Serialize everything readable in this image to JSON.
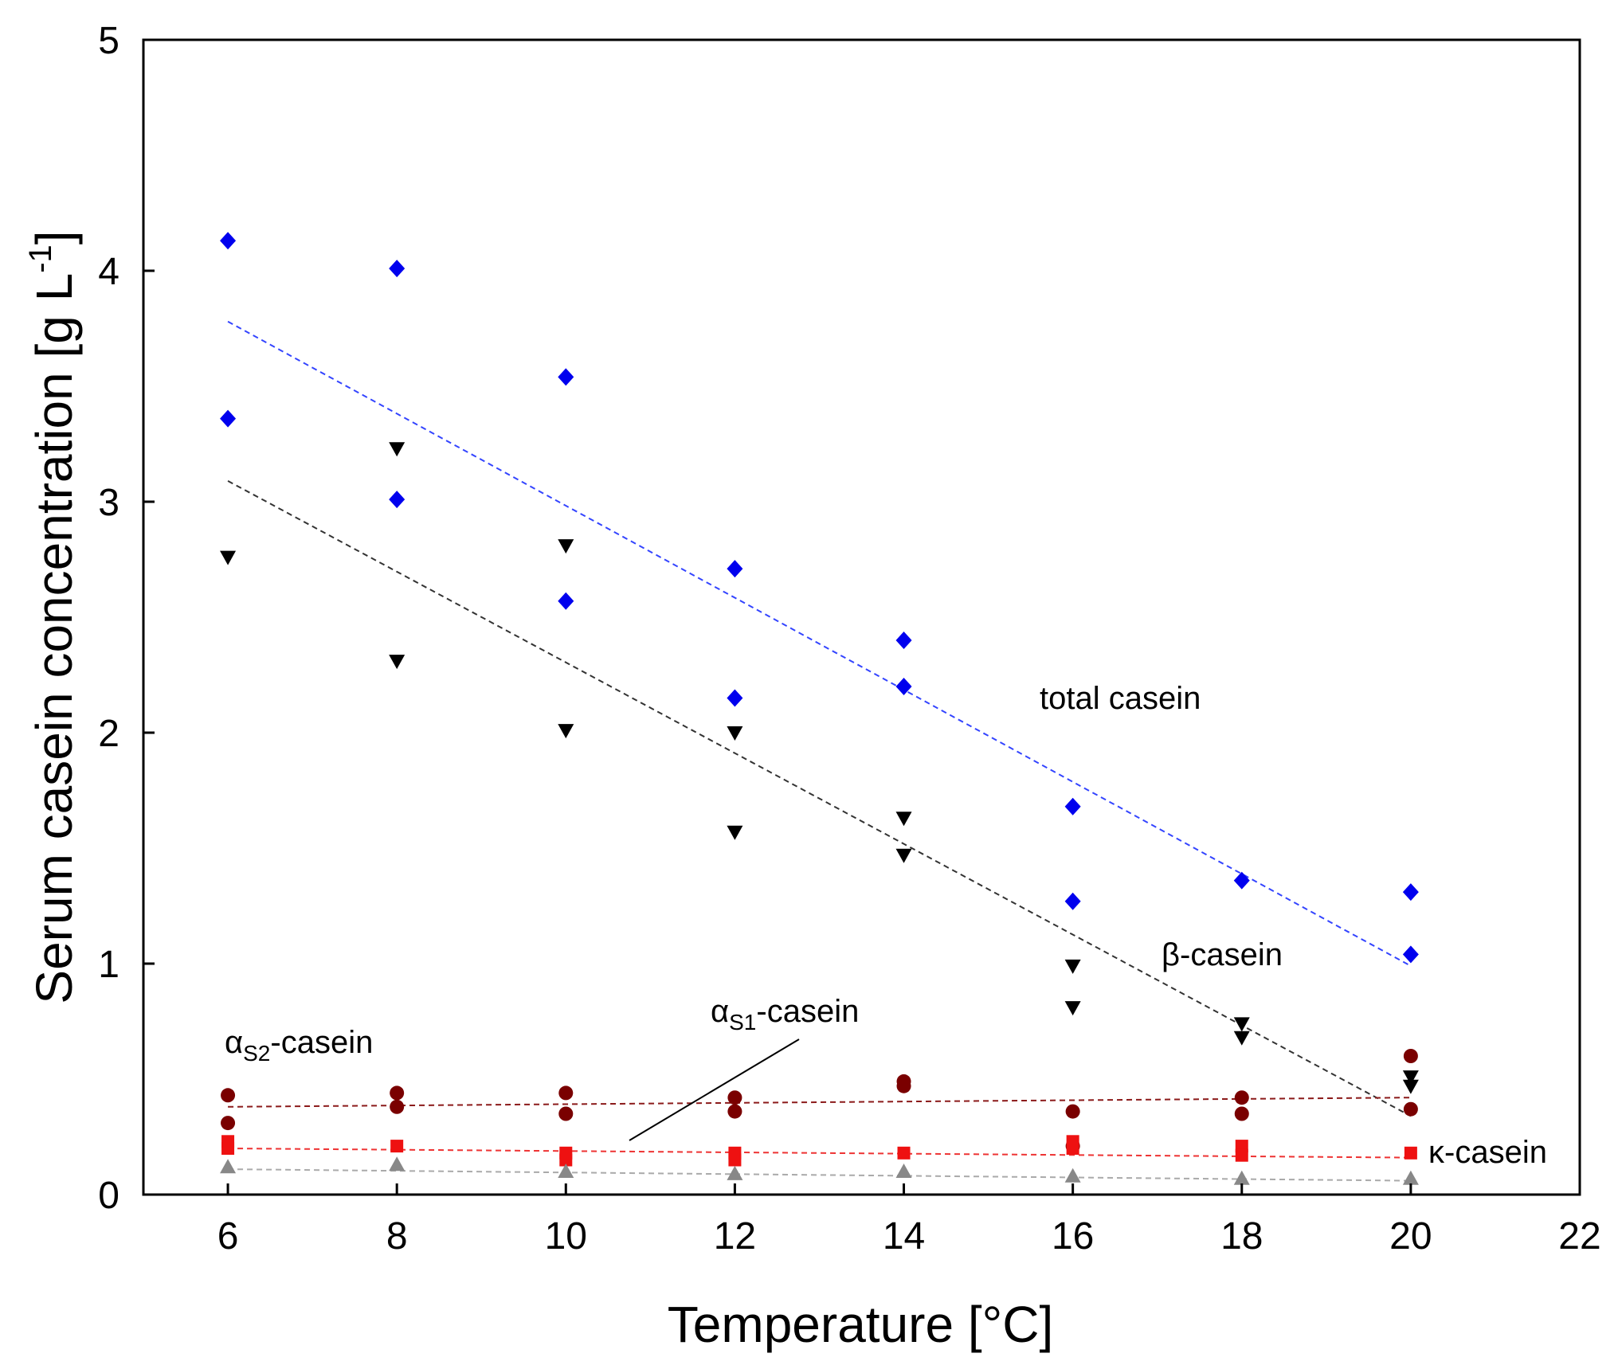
{
  "chart_data": {
    "type": "scatter",
    "title": "",
    "xlabel": "Temperature [°C]",
    "ylabel": {
      "main": "Serum casein concentration [g L",
      "sup": "-1",
      "close": "]"
    },
    "xlim": [
      5,
      22
    ],
    "ylim": [
      0,
      5
    ],
    "xticks": [
      6,
      8,
      10,
      12,
      14,
      16,
      18,
      20,
      22
    ],
    "yticks": [
      0,
      1,
      2,
      3,
      4,
      5
    ],
    "grid": false,
    "colors": {
      "total": "#0000ee",
      "beta": "#000000",
      "as2": "#7a0000",
      "as1": "#ee1111",
      "kappa": "#888888",
      "total_trend": "#3344ff",
      "beta_trend": "#333333",
      "as2_trend": "#8b1a1a",
      "as1_trend": "#ee3333",
      "kappa_trend": "#aaaaaa"
    },
    "series": [
      {
        "key": "total",
        "name": "total casein",
        "marker": "diamond",
        "x": [
          6,
          6,
          8,
          8,
          10,
          10,
          12,
          12,
          14,
          14,
          16,
          16,
          18,
          20,
          20
        ],
        "y": [
          4.13,
          3.36,
          4.01,
          3.01,
          3.54,
          2.57,
          2.71,
          2.15,
          2.4,
          2.2,
          1.68,
          1.27,
          1.36,
          1.31,
          1.04
        ],
        "trend": [
          [
            6,
            3.78
          ],
          [
            20,
            0.99
          ]
        ]
      },
      {
        "key": "beta",
        "name": "β-casein",
        "marker": "triangle-down",
        "x": [
          6,
          8,
          8,
          10,
          10,
          12,
          12,
          14,
          14,
          16,
          16,
          18,
          18,
          20,
          20
        ],
        "y": [
          2.76,
          3.23,
          2.31,
          2.81,
          2.01,
          2.0,
          1.57,
          1.63,
          1.47,
          0.99,
          0.81,
          0.74,
          0.68,
          0.51,
          0.47
        ],
        "trend": [
          [
            6,
            3.09
          ],
          [
            20,
            0.34
          ]
        ]
      },
      {
        "key": "as2",
        "name": "αS2-casein",
        "marker": "circle",
        "x": [
          6,
          6,
          8,
          8,
          10,
          10,
          12,
          12,
          14,
          14,
          16,
          16,
          18,
          18,
          20,
          20
        ],
        "y": [
          0.43,
          0.31,
          0.44,
          0.38,
          0.44,
          0.35,
          0.42,
          0.36,
          0.49,
          0.47,
          0.36,
          0.21,
          0.42,
          0.35,
          0.6,
          0.37
        ],
        "trend": [
          [
            6,
            0.38
          ],
          [
            20,
            0.42
          ]
        ]
      },
      {
        "key": "as1",
        "name": "αS1-casein",
        "marker": "square",
        "x": [
          6,
          6,
          8,
          10,
          10,
          12,
          12,
          14,
          16,
          16,
          18,
          18,
          20
        ],
        "y": [
          0.23,
          0.2,
          0.21,
          0.18,
          0.15,
          0.18,
          0.15,
          0.18,
          0.23,
          0.2,
          0.21,
          0.17,
          0.18
        ],
        "trend": [
          [
            6,
            0.2
          ],
          [
            20,
            0.16
          ]
        ]
      },
      {
        "key": "kappa",
        "name": "κ-casein",
        "marker": "triangle-up",
        "x": [
          6,
          8,
          10,
          12,
          14,
          16,
          18,
          20
        ],
        "y": [
          0.12,
          0.13,
          0.1,
          0.09,
          0.1,
          0.08,
          0.07,
          0.07
        ],
        "trend": [
          [
            6,
            0.11
          ],
          [
            20,
            0.06
          ]
        ]
      }
    ],
    "annotations": {
      "total": "total casein",
      "beta": "β-casein",
      "kappa": "κ-casein",
      "as1": {
        "greek": "α",
        "sub": "S1",
        "rest": "-casein"
      },
      "as2": {
        "greek": "α",
        "sub": "S2",
        "rest": "-casein"
      }
    }
  }
}
